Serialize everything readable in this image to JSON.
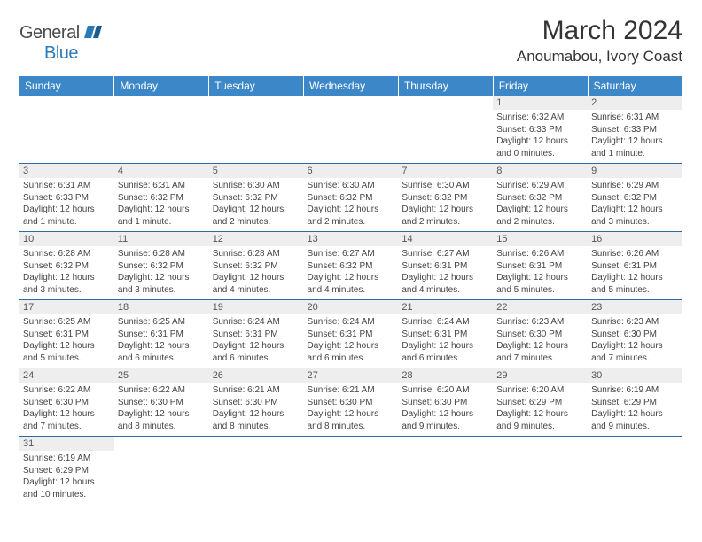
{
  "logo": {
    "text1": "General",
    "text2": "Blue"
  },
  "title": "March 2024",
  "location": "Anoumabou, Ivory Coast",
  "colors": {
    "header_bg": "#3b87c8",
    "row_divider": "#2a6aa8",
    "daynum_bg": "#eeeeee"
  },
  "daynames": [
    "Sunday",
    "Monday",
    "Tuesday",
    "Wednesday",
    "Thursday",
    "Friday",
    "Saturday"
  ],
  "weeks": [
    [
      null,
      null,
      null,
      null,
      null,
      {
        "n": "1",
        "sr": "Sunrise: 6:32 AM",
        "ss": "Sunset: 6:33 PM",
        "dl": "Daylight: 12 hours and 0 minutes."
      },
      {
        "n": "2",
        "sr": "Sunrise: 6:31 AM",
        "ss": "Sunset: 6:33 PM",
        "dl": "Daylight: 12 hours and 1 minute."
      }
    ],
    [
      {
        "n": "3",
        "sr": "Sunrise: 6:31 AM",
        "ss": "Sunset: 6:33 PM",
        "dl": "Daylight: 12 hours and 1 minute."
      },
      {
        "n": "4",
        "sr": "Sunrise: 6:31 AM",
        "ss": "Sunset: 6:32 PM",
        "dl": "Daylight: 12 hours and 1 minute."
      },
      {
        "n": "5",
        "sr": "Sunrise: 6:30 AM",
        "ss": "Sunset: 6:32 PM",
        "dl": "Daylight: 12 hours and 2 minutes."
      },
      {
        "n": "6",
        "sr": "Sunrise: 6:30 AM",
        "ss": "Sunset: 6:32 PM",
        "dl": "Daylight: 12 hours and 2 minutes."
      },
      {
        "n": "7",
        "sr": "Sunrise: 6:30 AM",
        "ss": "Sunset: 6:32 PM",
        "dl": "Daylight: 12 hours and 2 minutes."
      },
      {
        "n": "8",
        "sr": "Sunrise: 6:29 AM",
        "ss": "Sunset: 6:32 PM",
        "dl": "Daylight: 12 hours and 2 minutes."
      },
      {
        "n": "9",
        "sr": "Sunrise: 6:29 AM",
        "ss": "Sunset: 6:32 PM",
        "dl": "Daylight: 12 hours and 3 minutes."
      }
    ],
    [
      {
        "n": "10",
        "sr": "Sunrise: 6:28 AM",
        "ss": "Sunset: 6:32 PM",
        "dl": "Daylight: 12 hours and 3 minutes."
      },
      {
        "n": "11",
        "sr": "Sunrise: 6:28 AM",
        "ss": "Sunset: 6:32 PM",
        "dl": "Daylight: 12 hours and 3 minutes."
      },
      {
        "n": "12",
        "sr": "Sunrise: 6:28 AM",
        "ss": "Sunset: 6:32 PM",
        "dl": "Daylight: 12 hours and 4 minutes."
      },
      {
        "n": "13",
        "sr": "Sunrise: 6:27 AM",
        "ss": "Sunset: 6:32 PM",
        "dl": "Daylight: 12 hours and 4 minutes."
      },
      {
        "n": "14",
        "sr": "Sunrise: 6:27 AM",
        "ss": "Sunset: 6:31 PM",
        "dl": "Daylight: 12 hours and 4 minutes."
      },
      {
        "n": "15",
        "sr": "Sunrise: 6:26 AM",
        "ss": "Sunset: 6:31 PM",
        "dl": "Daylight: 12 hours and 5 minutes."
      },
      {
        "n": "16",
        "sr": "Sunrise: 6:26 AM",
        "ss": "Sunset: 6:31 PM",
        "dl": "Daylight: 12 hours and 5 minutes."
      }
    ],
    [
      {
        "n": "17",
        "sr": "Sunrise: 6:25 AM",
        "ss": "Sunset: 6:31 PM",
        "dl": "Daylight: 12 hours and 5 minutes."
      },
      {
        "n": "18",
        "sr": "Sunrise: 6:25 AM",
        "ss": "Sunset: 6:31 PM",
        "dl": "Daylight: 12 hours and 6 minutes."
      },
      {
        "n": "19",
        "sr": "Sunrise: 6:24 AM",
        "ss": "Sunset: 6:31 PM",
        "dl": "Daylight: 12 hours and 6 minutes."
      },
      {
        "n": "20",
        "sr": "Sunrise: 6:24 AM",
        "ss": "Sunset: 6:31 PM",
        "dl": "Daylight: 12 hours and 6 minutes."
      },
      {
        "n": "21",
        "sr": "Sunrise: 6:24 AM",
        "ss": "Sunset: 6:31 PM",
        "dl": "Daylight: 12 hours and 6 minutes."
      },
      {
        "n": "22",
        "sr": "Sunrise: 6:23 AM",
        "ss": "Sunset: 6:30 PM",
        "dl": "Daylight: 12 hours and 7 minutes."
      },
      {
        "n": "23",
        "sr": "Sunrise: 6:23 AM",
        "ss": "Sunset: 6:30 PM",
        "dl": "Daylight: 12 hours and 7 minutes."
      }
    ],
    [
      {
        "n": "24",
        "sr": "Sunrise: 6:22 AM",
        "ss": "Sunset: 6:30 PM",
        "dl": "Daylight: 12 hours and 7 minutes."
      },
      {
        "n": "25",
        "sr": "Sunrise: 6:22 AM",
        "ss": "Sunset: 6:30 PM",
        "dl": "Daylight: 12 hours and 8 minutes."
      },
      {
        "n": "26",
        "sr": "Sunrise: 6:21 AM",
        "ss": "Sunset: 6:30 PM",
        "dl": "Daylight: 12 hours and 8 minutes."
      },
      {
        "n": "27",
        "sr": "Sunrise: 6:21 AM",
        "ss": "Sunset: 6:30 PM",
        "dl": "Daylight: 12 hours and 8 minutes."
      },
      {
        "n": "28",
        "sr": "Sunrise: 6:20 AM",
        "ss": "Sunset: 6:30 PM",
        "dl": "Daylight: 12 hours and 9 minutes."
      },
      {
        "n": "29",
        "sr": "Sunrise: 6:20 AM",
        "ss": "Sunset: 6:29 PM",
        "dl": "Daylight: 12 hours and 9 minutes."
      },
      {
        "n": "30",
        "sr": "Sunrise: 6:19 AM",
        "ss": "Sunset: 6:29 PM",
        "dl": "Daylight: 12 hours and 9 minutes."
      }
    ],
    [
      {
        "n": "31",
        "sr": "Sunrise: 6:19 AM",
        "ss": "Sunset: 6:29 PM",
        "dl": "Daylight: 12 hours and 10 minutes."
      },
      null,
      null,
      null,
      null,
      null,
      null
    ]
  ]
}
